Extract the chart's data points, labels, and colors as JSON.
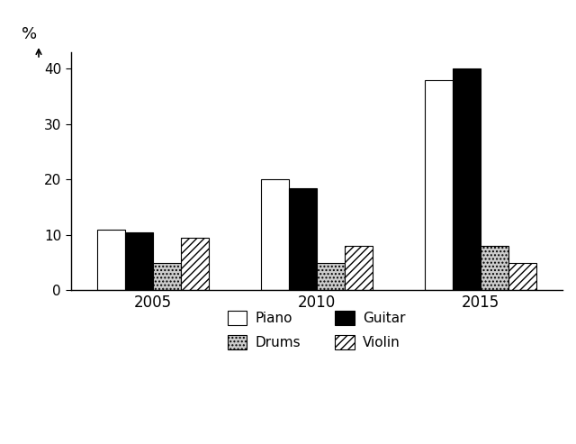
{
  "years": [
    "2005",
    "2010",
    "2015"
  ],
  "instruments": [
    "Piano",
    "Guitar",
    "Drums",
    "Violin"
  ],
  "values": {
    "Piano": [
      11,
      20,
      38
    ],
    "Guitar": [
      10.5,
      18.5,
      40
    ],
    "Drums": [
      5,
      5,
      8
    ],
    "Violin": [
      9.5,
      8,
      5
    ]
  },
  "bar_styles": {
    "Piano": {
      "facecolor": "white",
      "edgecolor": "black",
      "hatch": ""
    },
    "Guitar": {
      "facecolor": "black",
      "edgecolor": "black",
      "hatch": ""
    },
    "Drums": {
      "facecolor": "#cccccc",
      "edgecolor": "black",
      "hatch": "...."
    },
    "Violin": {
      "facecolor": "white",
      "edgecolor": "black",
      "hatch": "////"
    }
  },
  "ylim": [
    0,
    43
  ],
  "yticks": [
    0,
    10,
    20,
    30,
    40
  ],
  "ylabel": "%",
  "bar_width": 0.17,
  "group_positions": [
    0,
    1,
    2
  ],
  "background_color": "#ffffff",
  "figsize": [
    6.4,
    4.93
  ],
  "dpi": 100
}
